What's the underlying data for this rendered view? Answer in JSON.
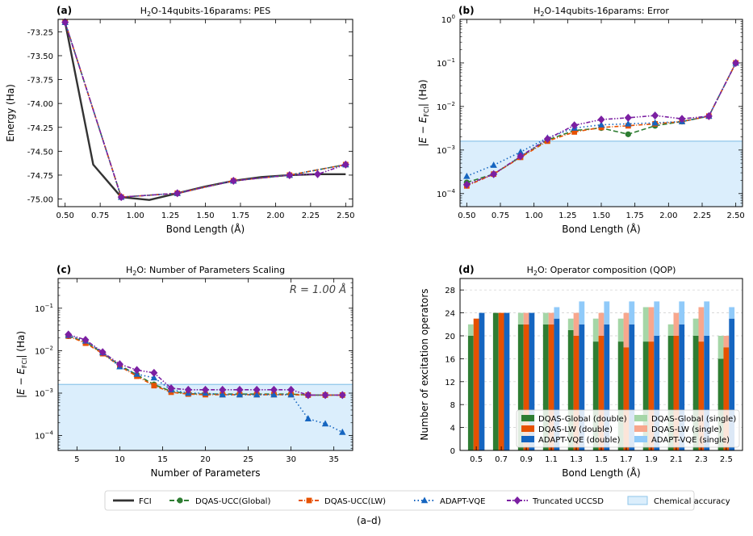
{
  "caption": "(a–d)",
  "colors": {
    "FCI": "#333333",
    "global": "#2e7d32",
    "lw": "#e65100",
    "adapt": "#1565c0",
    "trunc": "#7b1fa2",
    "chem_fill": "#dbeefc",
    "chem_line": "#8fc6ea",
    "global_single": "#a5d6a7",
    "lw_single": "#f8a78d",
    "adapt_single": "#90caf9"
  },
  "figure_legend": [
    {
      "key": "FCI",
      "label": "FCI"
    },
    {
      "key": "global",
      "label": "DQAS-UCC(Global)"
    },
    {
      "key": "lw",
      "label": "DQAS-UCC(LW)"
    },
    {
      "key": "adapt",
      "label": "ADAPT-VQE"
    },
    {
      "key": "trunc",
      "label": "Truncated UCCSD"
    },
    {
      "key": "chem",
      "label": "Chemical accuracy"
    }
  ],
  "chart_data": [
    {
      "letter": "(a)",
      "type": "line",
      "title_pre": "H",
      "title_sub": "2",
      "title_post": "O-14qubits-16params: PES",
      "xlabel": "Bond Length (Å)",
      "ylabel": "Energy (Ha)",
      "xlim": [
        0.45,
        2.55
      ],
      "ylim": [
        -75.08,
        -73.12
      ],
      "xticks": [
        0.5,
        0.75,
        1.0,
        1.25,
        1.5,
        1.75,
        2.0,
        2.25,
        2.5
      ],
      "xtick_labels": [
        "0.50",
        "0.75",
        "1.00",
        "1.25",
        "1.50",
        "1.75",
        "2.00",
        "2.25",
        "2.50"
      ],
      "yticks": [
        -73.25,
        -73.5,
        -73.75,
        -74.0,
        -74.25,
        -74.5,
        -74.75,
        -75.0
      ],
      "ytick_labels": [
        "-73.25",
        "-73.50",
        "-73.75",
        "-74.00",
        "-74.25",
        "-74.50",
        "-74.75",
        "-75.00"
      ],
      "series": [
        {
          "key": "FCI",
          "x": [
            0.5,
            0.7,
            0.9,
            1.1,
            1.3,
            1.5,
            1.7,
            1.9,
            2.1,
            2.3,
            2.5
          ],
          "y": [
            -73.15,
            -74.64,
            -74.98,
            -75.01,
            -74.94,
            -74.87,
            -74.81,
            -74.77,
            -74.75,
            -74.74,
            -74.74
          ]
        },
        {
          "key": "global",
          "x": [
            0.5,
            0.9,
            1.3,
            1.7,
            2.1,
            2.5
          ],
          "y": [
            -73.15,
            -74.98,
            -74.94,
            -74.81,
            -74.75,
            -74.64
          ]
        },
        {
          "key": "lw",
          "x": [
            0.5,
            0.9,
            1.3,
            1.7,
            2.1,
            2.5
          ],
          "y": [
            -73.15,
            -74.98,
            -74.94,
            -74.81,
            -74.75,
            -74.64
          ]
        },
        {
          "key": "adapt",
          "x": [
            0.5,
            0.9,
            1.3,
            1.7,
            2.1,
            2.5
          ],
          "y": [
            -73.15,
            -74.98,
            -74.94,
            -74.81,
            -74.75,
            -74.64
          ]
        },
        {
          "key": "trunc",
          "x": [
            0.5,
            0.9,
            1.3,
            1.7,
            2.1,
            2.3,
            2.5
          ],
          "y": [
            -73.15,
            -74.98,
            -74.94,
            -74.81,
            -74.75,
            -74.74,
            -74.64
          ]
        }
      ]
    },
    {
      "letter": "(b)",
      "type": "line",
      "title_pre": "H",
      "title_sub": "2",
      "title_post": "O-14qubits-16params: Error",
      "xlabel": "Bond Length (Å)",
      "ylabel": "|E − E_FCI| (Ha)",
      "yscale": "log",
      "xlim": [
        0.45,
        2.55
      ],
      "ylim_log": [
        -4.3,
        0
      ],
      "chem_acc": 0.0016,
      "xticks": [
        0.5,
        0.75,
        1.0,
        1.25,
        1.5,
        1.75,
        2.0,
        2.25,
        2.5
      ],
      "xtick_labels": [
        "0.50",
        "0.75",
        "1.00",
        "1.25",
        "1.50",
        "1.75",
        "2.00",
        "2.25",
        "2.50"
      ],
      "yticks_exp": [
        -4,
        -3,
        -2,
        -1,
        0
      ],
      "series": [
        {
          "key": "global",
          "x": [
            0.5,
            0.7,
            0.9,
            1.1,
            1.3,
            1.5,
            1.7,
            1.9,
            2.1,
            2.3,
            2.5
          ],
          "y": [
            0.00018,
            0.00028,
            0.0007,
            0.0017,
            0.0028,
            0.0032,
            0.0023,
            0.0036,
            0.0045,
            0.006,
            0.1
          ]
        },
        {
          "key": "lw",
          "x": [
            0.5,
            0.7,
            0.9,
            1.1,
            1.3,
            1.5,
            1.7,
            1.9,
            2.1,
            2.3,
            2.5
          ],
          "y": [
            0.00015,
            0.00028,
            0.00068,
            0.0016,
            0.0026,
            0.0033,
            0.0036,
            0.004,
            0.0045,
            0.006,
            0.1
          ]
        },
        {
          "key": "adapt",
          "x": [
            0.5,
            0.7,
            0.9,
            1.1,
            1.3,
            1.5,
            1.7,
            1.9,
            2.1,
            2.3,
            2.5
          ],
          "y": [
            0.00025,
            0.00045,
            0.0009,
            0.0019,
            0.0032,
            0.0038,
            0.004,
            0.0042,
            0.0045,
            0.006,
            0.1
          ]
        },
        {
          "key": "trunc",
          "x": [
            0.5,
            0.7,
            0.9,
            1.1,
            1.3,
            1.5,
            1.7,
            1.9,
            2.1,
            2.3,
            2.5
          ],
          "y": [
            0.00016,
            0.00028,
            0.00072,
            0.0018,
            0.0037,
            0.005,
            0.0055,
            0.0062,
            0.0052,
            0.006,
            0.1
          ]
        }
      ]
    },
    {
      "letter": "(c)",
      "type": "line",
      "title_pre": "H",
      "title_sub": "2",
      "title_post": "O: Number of Parameters Scaling",
      "annotation": "R = 1.00 Å",
      "xlabel": "Number of Parameters",
      "ylabel": "|E − E_FCI| (Ha)",
      "yscale": "log",
      "xlim": [
        2.8,
        37.2
      ],
      "ylim_log": [
        -4.35,
        -0.3
      ],
      "chem_acc": 0.0016,
      "xticks": [
        5,
        10,
        15,
        20,
        25,
        30,
        35
      ],
      "xtick_labels": [
        "5",
        "10",
        "15",
        "20",
        "25",
        "30",
        "35"
      ],
      "yticks_exp": [
        -4,
        -3,
        -2,
        -1
      ],
      "series": [
        {
          "key": "global",
          "x": [
            4,
            6,
            8,
            10,
            12,
            14,
            16,
            18,
            20,
            22,
            24,
            26,
            28,
            30,
            32,
            34,
            36
          ],
          "y": [
            0.022,
            0.016,
            0.0088,
            0.0045,
            0.0027,
            0.0016,
            0.0011,
            0.00097,
            0.00095,
            0.00095,
            0.00095,
            0.00095,
            0.00095,
            0.00095,
            0.0009,
            0.0009,
            0.0009
          ]
        },
        {
          "key": "lw",
          "x": [
            4,
            6,
            8,
            10,
            12,
            14,
            16,
            18,
            20,
            22,
            24,
            26,
            28,
            30,
            32,
            34,
            36
          ],
          "y": [
            0.022,
            0.015,
            0.0085,
            0.0043,
            0.0025,
            0.0015,
            0.00105,
            0.00095,
            0.00092,
            0.00092,
            0.00092,
            0.00092,
            0.00092,
            0.00092,
            0.0009,
            0.0009,
            0.0009
          ]
        },
        {
          "key": "adapt",
          "x": [
            4,
            6,
            8,
            10,
            12,
            14,
            16,
            18,
            20,
            22,
            24,
            26,
            28,
            30,
            32,
            34,
            36
          ],
          "y": [
            0.023,
            0.017,
            0.009,
            0.0042,
            0.0028,
            0.0023,
            0.0012,
            0.001,
            0.001,
            0.00092,
            0.00092,
            0.00092,
            0.00092,
            0.00092,
            0.00025,
            0.00019,
            0.00012
          ]
        },
        {
          "key": "trunc",
          "x": [
            4,
            6,
            8,
            10,
            12,
            14,
            16,
            18,
            20,
            22,
            24,
            26,
            28,
            30,
            32,
            34,
            36
          ],
          "y": [
            0.024,
            0.018,
            0.0092,
            0.0048,
            0.0035,
            0.003,
            0.0013,
            0.0012,
            0.0012,
            0.0012,
            0.0012,
            0.0012,
            0.0012,
            0.0012,
            0.0009,
            0.0009,
            0.0009
          ]
        }
      ]
    },
    {
      "letter": "(d)",
      "type": "bar",
      "stacked": true,
      "title_pre": "H",
      "title_sub": "2",
      "title_post": "O: Operator composition (QOP)",
      "xlabel": "Bond Length (Å)",
      "ylabel": "Number of excitation operators",
      "ylim": [
        0,
        30
      ],
      "yticks": [
        0,
        4,
        8,
        12,
        16,
        20,
        24,
        28
      ],
      "categories": [
        "0.5",
        "0.7",
        "0.9",
        "1.1",
        "1.3",
        "1.5",
        "1.7",
        "1.9",
        "2.1",
        "2.3",
        "2.5"
      ],
      "methods": [
        {
          "name": "DQAS-Global",
          "double": [
            20,
            24,
            22,
            22,
            21,
            19,
            19,
            19,
            20,
            20,
            16
          ],
          "single": [
            2,
            0,
            2,
            2,
            2,
            4,
            4,
            6,
            2,
            3,
            4
          ]
        },
        {
          "name": "DQAS-LW",
          "double": [
            23,
            24,
            22,
            22,
            20,
            20,
            18,
            19,
            20,
            19,
            18
          ],
          "single": [
            0,
            0,
            2,
            2,
            4,
            4,
            6,
            6,
            4,
            6,
            2
          ]
        },
        {
          "name": "ADAPT-VQE",
          "double": [
            24,
            24,
            24,
            23,
            22,
            22,
            22,
            20,
            22,
            20,
            23
          ],
          "single": [
            0,
            0,
            0,
            2,
            4,
            4,
            4,
            6,
            4,
            6,
            2
          ]
        }
      ],
      "legend": [
        {
          "key": "global",
          "label": "DQAS-Global (double)"
        },
        {
          "key": "global_single",
          "label": "DQAS-Global (single)"
        },
        {
          "key": "lw",
          "label": "DQAS-LW (double)"
        },
        {
          "key": "lw_single",
          "label": "DQAS-LW (single)"
        },
        {
          "key": "adapt",
          "label": "ADAPT-VQE (double)"
        },
        {
          "key": "adapt_single",
          "label": "ADAPT-VQE (single)"
        }
      ]
    }
  ]
}
